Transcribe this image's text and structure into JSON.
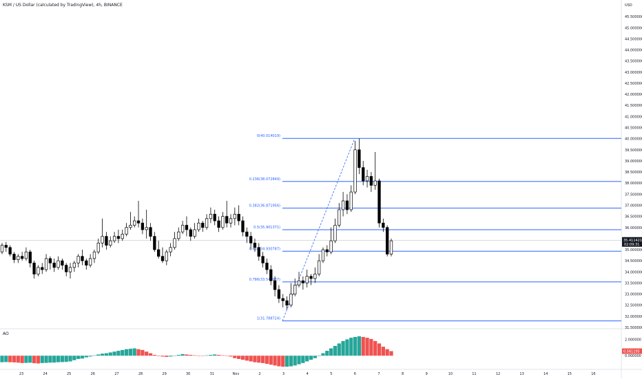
{
  "header": {
    "title": "KSM / US Dollar (calculated by TradingView), 4h, BINANCE",
    "currency": "USD"
  },
  "chart_data": {
    "type": "candlestick",
    "title": "KSM / US Dollar (calculated by TradingView), 4h, BINANCE",
    "y_unit": "USD",
    "ylim": [
      31.5,
      46.0
    ],
    "y_ticks": [
      "31.500000",
      "32.000000",
      "32.500000",
      "33.000000",
      "33.500000",
      "34.000000",
      "34.500000",
      "35.000000",
      "35.500000",
      "36.000000",
      "36.500000",
      "37.000000",
      "37.500000",
      "38.000000",
      "38.500000",
      "39.000000",
      "39.500000",
      "40.000000",
      "40.500000",
      "41.000000",
      "41.500000",
      "42.000000",
      "42.500000",
      "43.000000",
      "43.500000",
      "44.000000",
      "44.500000",
      "45.000000",
      "45.500000"
    ],
    "x_ticks": [
      "23",
      "24",
      "25",
      "26",
      "27",
      "28",
      "29",
      "30",
      "31",
      "Nov",
      "2",
      "3",
      "4",
      "5",
      "6",
      "7",
      "8",
      "9",
      "10",
      "11",
      "12",
      "13",
      "14",
      "15",
      "16"
    ],
    "colors": {
      "up": "#ffffff",
      "down": "#000000",
      "fib": "#2962ff",
      "ao_up": "#26a69a",
      "ao_down": "#ef5350"
    },
    "candles": [
      [
        34.9,
        35.2,
        34.8,
        35.3
      ],
      [
        35.2,
        35.1,
        34.9,
        35.35
      ],
      [
        35.1,
        34.8,
        34.7,
        35.2
      ],
      [
        34.8,
        34.55,
        34.4,
        34.9
      ],
      [
        34.55,
        34.7,
        34.4,
        34.8
      ],
      [
        34.7,
        34.6,
        34.5,
        34.9
      ],
      [
        34.6,
        34.9,
        34.5,
        35.1
      ],
      [
        34.9,
        34.4,
        34.2,
        35.0
      ],
      [
        34.4,
        33.9,
        33.7,
        34.5
      ],
      [
        33.9,
        34.2,
        33.8,
        34.3
      ],
      [
        34.2,
        34.1,
        33.9,
        34.4
      ],
      [
        34.1,
        34.6,
        34.0,
        34.8
      ],
      [
        34.6,
        34.4,
        34.1,
        34.7
      ],
      [
        34.4,
        34.2,
        34.0,
        34.6
      ],
      [
        34.2,
        34.5,
        34.1,
        34.7
      ],
      [
        34.5,
        34.3,
        34.1,
        34.6
      ],
      [
        34.3,
        34.0,
        33.8,
        34.4
      ],
      [
        34.0,
        34.2,
        33.7,
        34.4
      ],
      [
        34.2,
        34.4,
        34.0,
        34.5
      ],
      [
        34.4,
        34.7,
        34.2,
        34.8
      ],
      [
        34.7,
        34.5,
        34.3,
        35.0
      ],
      [
        34.5,
        34.3,
        34.1,
        34.6
      ],
      [
        34.3,
        34.6,
        34.2,
        34.8
      ],
      [
        34.6,
        34.9,
        34.4,
        35.0
      ],
      [
        34.9,
        35.3,
        34.8,
        35.5
      ],
      [
        35.3,
        35.6,
        35.1,
        36.4
      ],
      [
        35.6,
        35.2,
        35.0,
        35.8
      ],
      [
        35.2,
        35.4,
        35.1,
        35.6
      ],
      [
        35.4,
        35.6,
        35.3,
        35.8
      ],
      [
        35.6,
        35.5,
        35.3,
        35.9
      ],
      [
        35.5,
        35.7,
        35.4,
        35.9
      ],
      [
        35.7,
        36.0,
        35.6,
        36.2
      ],
      [
        36.0,
        36.1,
        35.9,
        36.7
      ],
      [
        36.1,
        36.3,
        36.0,
        36.5
      ],
      [
        36.3,
        36.2,
        36.0,
        37.2
      ],
      [
        36.2,
        35.9,
        35.7,
        36.4
      ],
      [
        35.9,
        36.0,
        35.5,
        36.8
      ],
      [
        36.0,
        35.6,
        35.4,
        36.2
      ],
      [
        35.6,
        35.0,
        34.9,
        35.8
      ],
      [
        35.0,
        34.7,
        34.6,
        35.4
      ],
      [
        34.7,
        34.5,
        34.4,
        35.1
      ],
      [
        34.5,
        34.9,
        34.3,
        35.0
      ],
      [
        34.9,
        35.1,
        34.7,
        35.3
      ],
      [
        35.1,
        35.5,
        35.0,
        35.8
      ],
      [
        35.5,
        35.8,
        35.4,
        36.0
      ],
      [
        35.8,
        36.1,
        35.7,
        36.3
      ],
      [
        36.1,
        35.9,
        35.6,
        36.5
      ],
      [
        35.9,
        35.6,
        35.4,
        36.0
      ],
      [
        35.6,
        35.9,
        35.5,
        36.2
      ],
      [
        35.9,
        36.2,
        35.8,
        36.4
      ],
      [
        36.2,
        36.0,
        35.8,
        36.3
      ],
      [
        36.0,
        36.4,
        35.9,
        36.6
      ],
      [
        36.4,
        36.6,
        36.2,
        36.9
      ],
      [
        36.6,
        36.3,
        36.1,
        36.8
      ],
      [
        36.3,
        36.0,
        35.8,
        36.5
      ],
      [
        36.0,
        36.5,
        35.9,
        36.7
      ],
      [
        36.5,
        36.2,
        36.0,
        37.2
      ],
      [
        36.2,
        36.4,
        36.0,
        36.6
      ],
      [
        36.4,
        36.6,
        36.1,
        36.9
      ],
      [
        36.6,
        36.3,
        36.1,
        37.0
      ],
      [
        36.3,
        35.8,
        35.6,
        36.5
      ],
      [
        35.8,
        35.6,
        35.3,
        36.0
      ],
      [
        35.6,
        35.3,
        35.0,
        35.8
      ],
      [
        35.3,
        35.1,
        34.9,
        35.5
      ],
      [
        35.1,
        34.7,
        34.5,
        35.3
      ],
      [
        34.7,
        34.4,
        34.2,
        34.9
      ],
      [
        34.4,
        34.1,
        33.9,
        34.6
      ],
      [
        34.1,
        33.6,
        33.4,
        34.3
      ],
      [
        33.6,
        33.2,
        32.9,
        33.8
      ],
      [
        33.2,
        32.8,
        32.6,
        33.4
      ],
      [
        32.8,
        32.7,
        32.4,
        33.0
      ],
      [
        32.7,
        32.5,
        32.3,
        32.9
      ],
      [
        32.5,
        33.0,
        32.4,
        33.5
      ],
      [
        33.0,
        33.4,
        32.9,
        33.7
      ],
      [
        33.4,
        33.6,
        33.3,
        34.0
      ],
      [
        33.6,
        33.5,
        33.2,
        33.8
      ],
      [
        33.5,
        33.8,
        33.3,
        34.1
      ],
      [
        33.8,
        33.7,
        33.4,
        33.9
      ],
      [
        33.7,
        33.9,
        33.5,
        34.2
      ],
      [
        33.9,
        34.5,
        33.8,
        34.8
      ],
      [
        34.5,
        35.0,
        34.4,
        35.1
      ],
      [
        35.0,
        34.9,
        34.7,
        35.2
      ],
      [
        34.9,
        35.4,
        34.8,
        36.0
      ],
      [
        35.4,
        36.1,
        35.3,
        36.4
      ],
      [
        36.1,
        36.8,
        36.0,
        37.1
      ],
      [
        36.8,
        37.2,
        36.5,
        37.6
      ],
      [
        37.2,
        36.8,
        36.6,
        37.5
      ],
      [
        36.8,
        37.6,
        36.7,
        37.9
      ],
      [
        37.6,
        39.5,
        37.5,
        39.9
      ],
      [
        39.5,
        38.7,
        38.4,
        40.01
      ],
      [
        38.7,
        38.1,
        37.9,
        39.0
      ],
      [
        38.1,
        38.3,
        37.8,
        38.6
      ],
      [
        38.3,
        37.9,
        37.6,
        38.5
      ],
      [
        37.9,
        38.1,
        37.7,
        39.4
      ],
      [
        38.1,
        36.2,
        36.0,
        38.2
      ],
      [
        36.2,
        36.0,
        35.8,
        36.4
      ],
      [
        36.0,
        34.8,
        34.7,
        36.1
      ],
      [
        34.8,
        35.4,
        34.7,
        35.5
      ]
    ],
    "fib_levels": [
      {
        "label": "0(40.014019)",
        "value": 40.014019
      },
      {
        "label": "0.236(38.072849)",
        "value": 38.072849
      },
      {
        "label": "0.382(36.871956)",
        "value": 36.871956
      },
      {
        "label": "0.5(35.901371)",
        "value": 35.901371
      },
      {
        "label": "0.618(34.930787)",
        "value": 34.930787
      },
      {
        "label": "0.786(33.548937)",
        "value": 33.548937
      },
      {
        "label": "1(31.788724)",
        "value": 31.788724
      }
    ],
    "current_price": "35.411421",
    "countdown": "02:09:31",
    "ao": {
      "label": "AO",
      "ylim": [
        -1.5,
        2.8
      ],
      "y_ticks": [
        "2.000000",
        "0.000000"
      ],
      "current": "0.561195",
      "values": [
        -0.8,
        -0.78,
        -0.8,
        -0.82,
        -0.85,
        -0.9,
        -0.88,
        -0.86,
        -0.92,
        -0.95,
        -0.9,
        -0.88,
        -0.85,
        -0.84,
        -0.8,
        -0.78,
        -0.76,
        -0.7,
        -0.55,
        -0.4,
        -0.35,
        -0.2,
        -0.1,
        0.05,
        0.15,
        0.25,
        0.3,
        0.4,
        0.5,
        0.6,
        0.7,
        0.8,
        0.85,
        0.9,
        0.8,
        0.7,
        0.5,
        0.3,
        0.1,
        -0.05,
        -0.1,
        -0.15,
        -0.1,
        0.02,
        0.1,
        0.2,
        0.15,
        0.1,
        0.05,
        0.02,
        0.0,
        0.05,
        0.1,
        0.15,
        0.1,
        0.05,
        0.02,
        -0.1,
        -0.3,
        -0.4,
        -0.5,
        -0.6,
        -0.7,
        -0.8,
        -0.85,
        -0.9,
        -1.0,
        -1.1,
        -1.2,
        -1.3,
        -1.35,
        -1.35,
        -1.3,
        -1.2,
        -1.05,
        -0.9,
        -0.7,
        -0.5,
        -0.3,
        -0.05,
        0.3,
        0.6,
        0.9,
        1.2,
        1.5,
        1.8,
        2.0,
        2.2,
        2.3,
        2.38,
        2.3,
        2.2,
        2.05,
        1.8,
        1.5,
        1.1,
        0.8,
        0.56
      ]
    }
  }
}
